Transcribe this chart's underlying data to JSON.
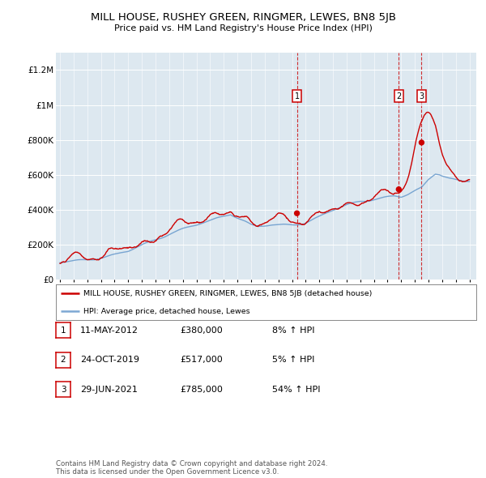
{
  "title": "MILL HOUSE, RUSHEY GREEN, RINGMER, LEWES, BN8 5JB",
  "subtitle": "Price paid vs. HM Land Registry's House Price Index (HPI)",
  "ylim": [
    0,
    1300000
  ],
  "yticks": [
    0,
    200000,
    400000,
    600000,
    800000,
    1000000,
    1200000
  ],
  "ytick_labels": [
    "£0",
    "£200K",
    "£400K",
    "£600K",
    "£800K",
    "£1M",
    "£1.2M"
  ],
  "hpi_color": "#6699cc",
  "price_color": "#cc0000",
  "sale_dates": [
    2012.36,
    2019.82,
    2021.49
  ],
  "sale_prices": [
    380000,
    517000,
    785000
  ],
  "sale_labels": [
    "1",
    "2",
    "3"
  ],
  "legend_price_label": "MILL HOUSE, RUSHEY GREEN, RINGMER, LEWES, BN8 5JB (detached house)",
  "legend_hpi_label": "HPI: Average price, detached house, Lewes",
  "table_rows": [
    {
      "num": "1",
      "date": "11-MAY-2012",
      "price": "£380,000",
      "change": "8% ↑ HPI"
    },
    {
      "num": "2",
      "date": "24-OCT-2019",
      "price": "£517,000",
      "change": "5% ↑ HPI"
    },
    {
      "num": "3",
      "date": "29-JUN-2021",
      "price": "£785,000",
      "change": "54% ↑ HPI"
    }
  ],
  "footnote": "Contains HM Land Registry data © Crown copyright and database right 2024.\nThis data is licensed under the Open Government Licence v3.0.",
  "background_color": "#dde8f0"
}
